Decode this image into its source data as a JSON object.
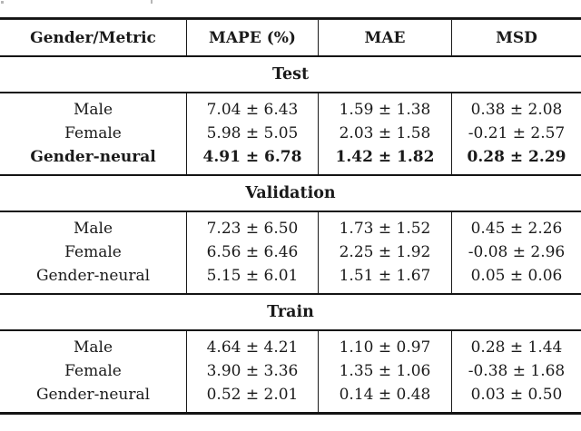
{
  "table": {
    "headers": {
      "col1": "Gender/Metric",
      "col2": "MAPE (%)",
      "col3": "MAE",
      "col4": "MSD"
    },
    "sections": [
      {
        "title": "Test",
        "rows": [
          {
            "label": "Male",
            "mape": "7.04 ± 6.43",
            "mae": "1.59 ± 1.38",
            "msd": "0.38 ± 2.08",
            "bold": false
          },
          {
            "label": "Female",
            "mape": "5.98 ± 5.05",
            "mae": "2.03 ± 1.58",
            "msd": "-0.21 ± 2.57",
            "bold": false
          },
          {
            "label": "Gender-neural",
            "mape": "4.91 ± 6.78",
            "mae": "1.42 ± 1.82",
            "msd": "0.28 ± 2.29",
            "bold": true
          }
        ]
      },
      {
        "title": "Validation",
        "rows": [
          {
            "label": "Male",
            "mape": "7.23 ± 6.50",
            "mae": "1.73 ± 1.52",
            "msd": "0.45 ± 2.26",
            "bold": false
          },
          {
            "label": "Female",
            "mape": "6.56 ± 6.46",
            "mae": "2.25 ± 1.92",
            "msd": "-0.08 ± 2.96",
            "bold": false
          },
          {
            "label": "Gender-neural",
            "mape": "5.15 ± 6.01",
            "mae": "1.51 ± 1.67",
            "msd": "0.05 ± 0.06",
            "bold": false
          }
        ]
      },
      {
        "title": "Train",
        "rows": [
          {
            "label": "Male",
            "mape": "4.64 ± 4.21",
            "mae": "1.10 ± 0.97",
            "msd": "0.28 ± 1.44",
            "bold": false
          },
          {
            "label": "Female",
            "mape": "3.90 ± 3.36",
            "mae": "1.35 ± 1.06",
            "msd": "-0.38 ± 1.68",
            "bold": false
          },
          {
            "label": "Gender-neural",
            "mape": "0.52 ± 2.01",
            "mae": "0.14 ± 0.48",
            "msd": "0.03 ± 0.50",
            "bold": false
          }
        ]
      }
    ],
    "colors": {
      "text": "#1a1a1a",
      "rule": "#141414",
      "background": "#ffffff"
    }
  }
}
